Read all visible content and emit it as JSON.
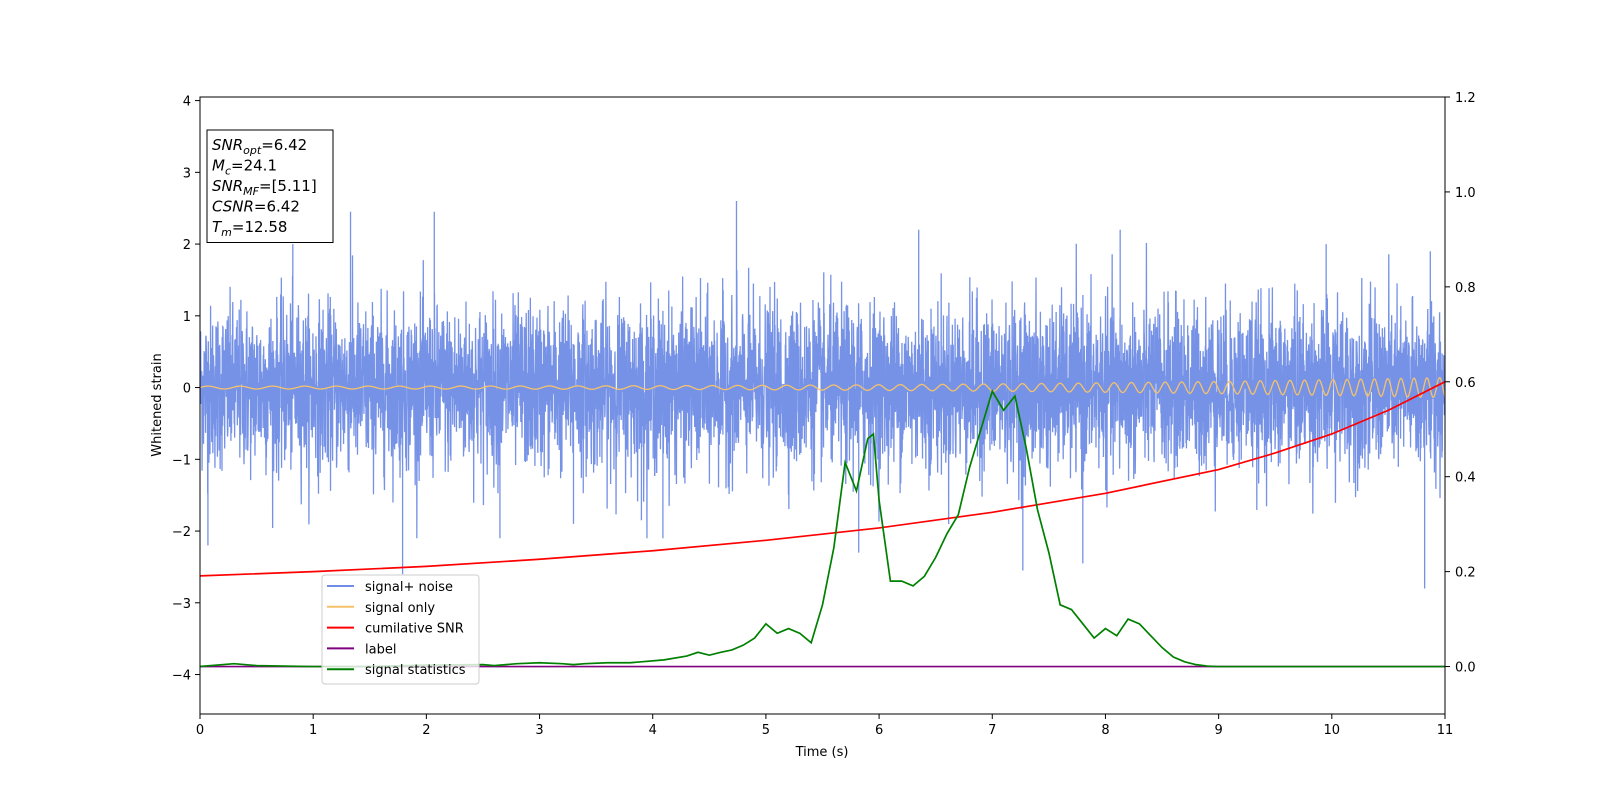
{
  "chart_data": {
    "type": "line",
    "xlabel": "Time (s)",
    "ylabel": "Whitened strain",
    "xlim": [
      0,
      11
    ],
    "ylim": [
      -4.55,
      4.05
    ],
    "y2lim": [
      -0.1,
      1.2
    ],
    "x_ticks": [
      "0",
      "1",
      "2",
      "3",
      "4",
      "5",
      "6",
      "7",
      "8",
      "9",
      "10",
      "11"
    ],
    "y_ticks": [
      "−4",
      "−3",
      "−2",
      "−1",
      "0",
      "1",
      "2",
      "3",
      "4"
    ],
    "y2_ticks": [
      "0.0",
      "0.2",
      "0.4",
      "0.6",
      "0.8",
      "1.0",
      "1.2"
    ],
    "legend_position": "lower-left",
    "annotation": {
      "lines": [
        {
          "sym": "SNR",
          "sub": "opt",
          "val": "=6.42"
        },
        {
          "sym": "M",
          "sub": "c",
          "val": "=24.1"
        },
        {
          "sym": "SNR",
          "sub": "MF",
          "val": "=[5.11]"
        },
        {
          "sym": "CSNR",
          "sub": "",
          "val": "=6.42"
        },
        {
          "sym": "T",
          "sub": "m",
          "val": "=12.58"
        }
      ]
    },
    "series": [
      {
        "name": "signal+ noise",
        "color": "#6f8ce6",
        "axis": "left",
        "kind": "noise",
        "sigma": 0.75,
        "spikes": [
          [
            0.07,
            -2.2
          ],
          [
            0.82,
            2.0
          ],
          [
            1.33,
            2.45
          ],
          [
            1.79,
            -2.6
          ],
          [
            2.07,
            2.45
          ],
          [
            2.65,
            -2.1
          ],
          [
            3.3,
            -1.9
          ],
          [
            3.9,
            -1.85
          ],
          [
            4.09,
            -2.1
          ],
          [
            4.74,
            2.6
          ],
          [
            5.82,
            -2.3
          ],
          [
            6.35,
            2.2
          ],
          [
            7.27,
            -2.55
          ],
          [
            7.8,
            -2.45
          ],
          [
            8.13,
            2.2
          ],
          [
            9.95,
            2.0
          ],
          [
            10.82,
            -2.8
          ],
          [
            10.87,
            1.9
          ]
        ]
      },
      {
        "name": "signal only",
        "color": "#f5c26b",
        "axis": "left",
        "kind": "chirp",
        "amp_start": 0.02,
        "amp_end": 0.14,
        "freq_start": 3.5,
        "freq_end": 9.0
      },
      {
        "name": "cumilative SNR",
        "color": "#ff0000",
        "axis": "right",
        "x": [
          0,
          1,
          2,
          3,
          4,
          5,
          6,
          7,
          8,
          9,
          9.5,
          10,
          10.5,
          11
        ],
        "y": [
          0.191,
          0.2,
          0.211,
          0.226,
          0.244,
          0.266,
          0.292,
          0.325,
          0.365,
          0.415,
          0.45,
          0.49,
          0.54,
          0.6
        ]
      },
      {
        "name": "label",
        "color": "#800080",
        "axis": "right",
        "x": [
          0,
          11
        ],
        "y": [
          0,
          0
        ]
      },
      {
        "name": "signal statistics",
        "color": "#008000",
        "axis": "right",
        "x": [
          0,
          0.3,
          0.5,
          1,
          1.5,
          2,
          2.5,
          2.6,
          2.8,
          3,
          3.2,
          3.3,
          3.4,
          3.6,
          3.8,
          3.9,
          4.1,
          4.3,
          4.4,
          4.5,
          4.6,
          4.7,
          4.8,
          4.9,
          5,
          5.1,
          5.2,
          5.3,
          5.4,
          5.5,
          5.6,
          5.7,
          5.8,
          5.9,
          5.95,
          6,
          6.1,
          6.2,
          6.3,
          6.4,
          6.5,
          6.6,
          6.7,
          6.8,
          6.9,
          7,
          7.1,
          7.2,
          7.3,
          7.4,
          7.5,
          7.6,
          7.7,
          7.8,
          7.9,
          8,
          8.1,
          8.2,
          8.3,
          8.4,
          8.5,
          8.6,
          8.7,
          8.8,
          8.9,
          9,
          9.5,
          10,
          11
        ],
        "y": [
          0,
          0.006,
          0.002,
          0,
          0,
          0.003,
          0.004,
          0.002,
          0.006,
          0.008,
          0.006,
          0.004,
          0.006,
          0.008,
          0.008,
          0.01,
          0.014,
          0.022,
          0.03,
          0.024,
          0.03,
          0.035,
          0.045,
          0.06,
          0.09,
          0.07,
          0.08,
          0.07,
          0.05,
          0.13,
          0.25,
          0.43,
          0.37,
          0.48,
          0.49,
          0.35,
          0.18,
          0.18,
          0.17,
          0.19,
          0.23,
          0.28,
          0.32,
          0.42,
          0.5,
          0.58,
          0.54,
          0.57,
          0.46,
          0.33,
          0.24,
          0.13,
          0.12,
          0.09,
          0.06,
          0.08,
          0.065,
          0.1,
          0.09,
          0.065,
          0.04,
          0.02,
          0.01,
          0.004,
          0.001,
          0,
          0,
          0,
          0
        ]
      }
    ]
  }
}
